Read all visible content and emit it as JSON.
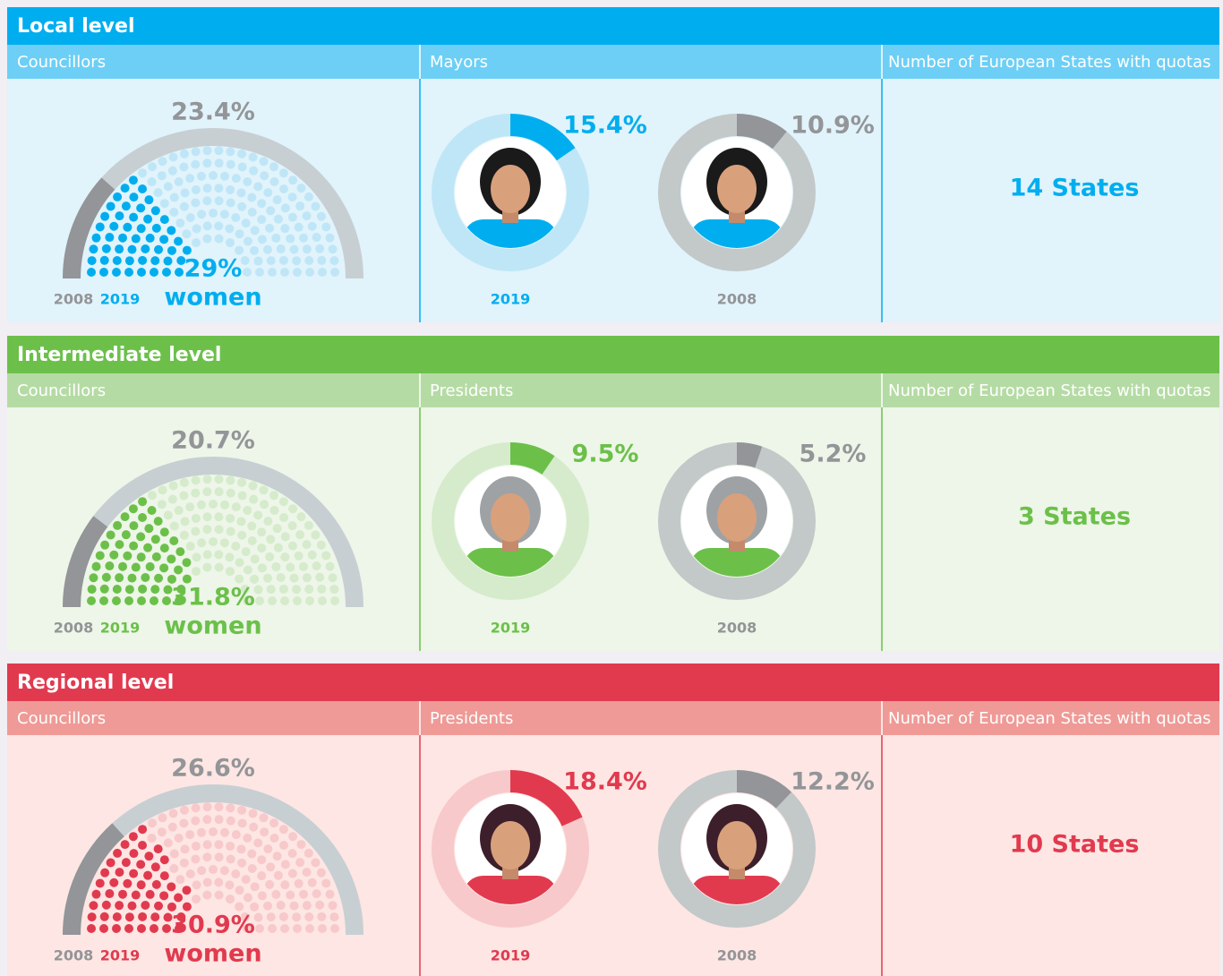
{
  "sections": [
    {
      "title": "Local level",
      "color": "#00aeef",
      "light": "#bfe6f7",
      "sub_bg": "#6dcff6",
      "body_bg": "#e1f3fb",
      "years": [
        "2008",
        "2019"
      ],
      "women": "women",
      "councillors": {
        "label": "Councillors",
        "value_2008": {
          "value": 23.4,
          "label": "23.4%"
        },
        "value_2019": {
          "value": 29,
          "label": "29%"
        }
      },
      "heads": {
        "label": "Mayors",
        "value_2019": {
          "value": 15.4,
          "label": "15.4%"
        },
        "value_2008": {
          "value": 10.9,
          "label": "10.9%"
        }
      },
      "quotas": {
        "label": "Number of European States with quotas",
        "value": 14,
        "value_label": "14 States"
      }
    },
    {
      "title": "Intermediate level",
      "color": "#6cc04a",
      "light": "#d5ebcb",
      "sub_bg": "#b5dba4",
      "body_bg": "#edf6e8",
      "years": [
        "2008",
        "2019"
      ],
      "women": "women",
      "councillors": {
        "label": "Councillors",
        "value_2008": {
          "value": 20.7,
          "label": "20.7%"
        },
        "value_2019": {
          "value": 31.8,
          "label": "31.8%"
        }
      },
      "heads": {
        "label": "Presidents",
        "value_2019": {
          "value": 9.5,
          "label": "9.5%"
        },
        "value_2008": {
          "value": 5.2,
          "label": "5.2%"
        }
      },
      "quotas": {
        "label": "Number of European States with quotas",
        "value": 3,
        "value_label": "3 States"
      }
    },
    {
      "title": "Regional level",
      "color": "#e13a4f",
      "light": "#f7c9cb",
      "sub_bg": "#ef9a96",
      "body_bg": "#fde6e3",
      "years": [
        "2008",
        "2019"
      ],
      "women": "women",
      "councillors": {
        "label": "Councillors",
        "value_2008": {
          "value": 26.6,
          "label": "26.6%"
        },
        "value_2019": {
          "value": 30.9,
          "label": "30.9%"
        }
      },
      "heads": {
        "label": "Presidents",
        "value_2019": {
          "value": 18.4,
          "label": "18.4%"
        },
        "value_2008": {
          "value": 12.2,
          "label": "12.2%"
        }
      },
      "quotas": {
        "label": "Number of European States with quotas",
        "value": 10,
        "value_label": "10 States"
      }
    }
  ]
}
